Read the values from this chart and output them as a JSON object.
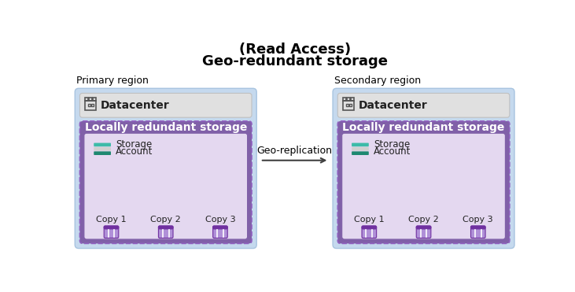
{
  "title_line1": "(Read Access)",
  "title_line2": "Geo-redundant storage",
  "primary_label": "Primary region",
  "secondary_label": "Secondary region",
  "datacenter_label": "Datacenter",
  "lrs_label": "Locally redundant storage",
  "storage_label1": "Storage",
  "storage_label2": "Account",
  "copies": [
    "Copy 1",
    "Copy 2",
    "Copy 3"
  ],
  "geo_replication_label": "Geo-replication",
  "bg_color": "#ffffff",
  "region_bg_color": "#c5d9ee",
  "datacenter_bg_color": "#e0e0e0",
  "lrs_outer_color": "#8060a8",
  "lrs_inner_color": "#e4d8f0",
  "storage_icon_teal1": "#3dbba8",
  "storage_icon_teal2": "#1e8870",
  "storage_icon_gray": "#d0d0d0",
  "copy_icon_dark": "#7030a0",
  "copy_icon_light": "#b090d8",
  "copy_icon_white_line": "#ffffff",
  "arrow_color": "#404040",
  "title_fontsize": 13,
  "region_label_fontsize": 9,
  "datacenter_fontsize": 10,
  "lrs_fontsize": 10,
  "storage_fontsize": 8.5,
  "copy_fontsize": 8,
  "geo_rep_fontsize": 9
}
